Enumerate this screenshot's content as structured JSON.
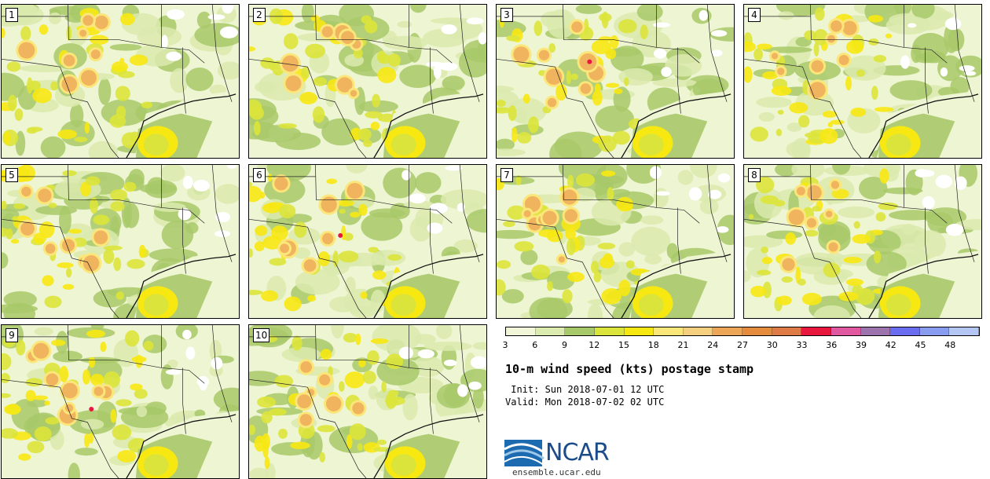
{
  "panels": [
    {
      "label": "1"
    },
    {
      "label": "2"
    },
    {
      "label": "3"
    },
    {
      "label": "4"
    },
    {
      "label": "5"
    },
    {
      "label": "6"
    },
    {
      "label": "7"
    },
    {
      "label": "8"
    },
    {
      "label": "9"
    },
    {
      "label": "10"
    }
  ],
  "legend": {
    "ticks": [
      "3",
      "6",
      "9",
      "12",
      "15",
      "18",
      "21",
      "24",
      "27",
      "30",
      "33",
      "36",
      "39",
      "42",
      "45",
      "48"
    ],
    "colors": [
      "#f1f6d8",
      "#dbeaae",
      "#a8c96a",
      "#dbe43a",
      "#f7e812",
      "#fbe67a",
      "#f6cf7f",
      "#eda657",
      "#e58b3e",
      "#dd7a45",
      "#e8173d",
      "#e058a0",
      "#9c73ad",
      "#6a6df0",
      "#889cf0",
      "#b3c6f4"
    ]
  },
  "title": "10-m wind speed (kts) postage stamp",
  "init_text": " Init: Sun 2018-07-01 12 UTC",
  "valid_text": "Valid: Mon 2018-07-02 02 UTC",
  "logo": {
    "text": "NCAR",
    "url": "ensemble.ucar.edu"
  }
}
